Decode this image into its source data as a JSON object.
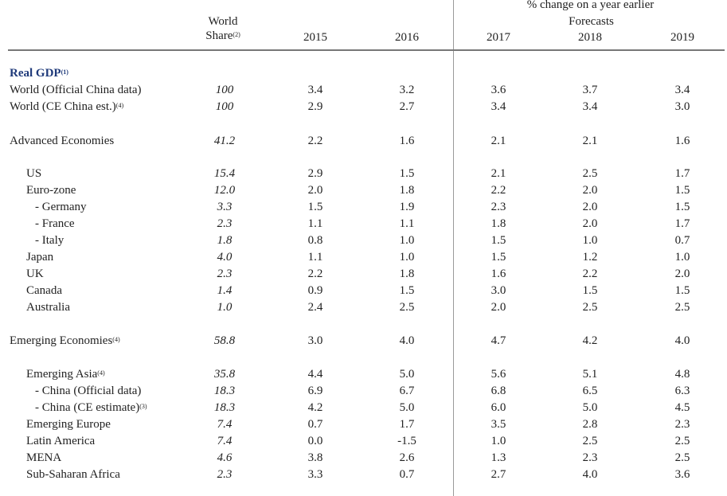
{
  "header": {
    "world_share_line1": "World",
    "world_share_line2": "Share",
    "world_share_note": "(2)",
    "pct_change": "% change on a year earlier",
    "forecasts": "Forecasts",
    "years": [
      "2015",
      "2016",
      "2017",
      "2018",
      "2019"
    ]
  },
  "section_title": "Real GDP",
  "section_note": "(1)",
  "rows": [
    {
      "label": "World (Official China data)",
      "note": "",
      "share": "100",
      "v": [
        "3.4",
        "3.2",
        "3.6",
        "3.7",
        "3.4"
      ],
      "indent": 0
    },
    {
      "label": "World (CE China est.)",
      "note": "(4)",
      "share": "100",
      "v": [
        "2.9",
        "2.7",
        "3.4",
        "3.4",
        "3.0"
      ],
      "indent": 0
    },
    {
      "label": "Advanced Economies",
      "note": "",
      "share": "41.2",
      "v": [
        "2.2",
        "1.6",
        "2.1",
        "2.1",
        "1.6"
      ],
      "indent": 0
    },
    {
      "label": "US",
      "note": "",
      "share": "15.4",
      "v": [
        "2.9",
        "1.5",
        "2.1",
        "2.5",
        "1.7"
      ],
      "indent": 1
    },
    {
      "label": "Euro-zone",
      "note": "",
      "share": "12.0",
      "v": [
        "2.0",
        "1.8",
        "2.2",
        "2.0",
        "1.5"
      ],
      "indent": 1
    },
    {
      "label": "- Germany",
      "note": "",
      "share": "3.3",
      "v": [
        "1.5",
        "1.9",
        "2.3",
        "2.0",
        "1.5"
      ],
      "indent": 2
    },
    {
      "label": "- France",
      "note": "",
      "share": "2.3",
      "v": [
        "1.1",
        "1.1",
        "1.8",
        "2.0",
        "1.7"
      ],
      "indent": 2
    },
    {
      "label": "- Italy",
      "note": "",
      "share": "1.8",
      "v": [
        "0.8",
        "1.0",
        "1.5",
        "1.0",
        "0.7"
      ],
      "indent": 2
    },
    {
      "label": "Japan",
      "note": "",
      "share": "4.0",
      "v": [
        "1.1",
        "1.0",
        "1.5",
        "1.2",
        "1.0"
      ],
      "indent": 1
    },
    {
      "label": "UK",
      "note": "",
      "share": "2.3",
      "v": [
        "2.2",
        "1.8",
        "1.6",
        "2.2",
        "2.0"
      ],
      "indent": 1
    },
    {
      "label": "Canada",
      "note": "",
      "share": "1.4",
      "v": [
        "0.9",
        "1.5",
        "3.0",
        "1.5",
        "1.5"
      ],
      "indent": 1
    },
    {
      "label": "Australia",
      "note": "",
      "share": "1.0",
      "v": [
        "2.4",
        "2.5",
        "2.0",
        "2.5",
        "2.5"
      ],
      "indent": 1
    },
    {
      "label": "Emerging Economies",
      "note": "(4)",
      "share": "58.8",
      "v": [
        "3.0",
        "4.0",
        "4.7",
        "4.2",
        "4.0"
      ],
      "indent": 0
    },
    {
      "label": "Emerging Asia",
      "note": "(4)",
      "share": "35.8",
      "v": [
        "4.4",
        "5.0",
        "5.6",
        "5.1",
        "4.8"
      ],
      "indent": 1
    },
    {
      "label": "- China (Official data)",
      "note": "",
      "share": "18.3",
      "v": [
        "6.9",
        "6.7",
        "6.8",
        "6.5",
        "6.3"
      ],
      "indent": 2
    },
    {
      "label": "- China (CE estimate)",
      "note": "(3)",
      "share": "18.3",
      "v": [
        "4.2",
        "5.0",
        "6.0",
        "5.0",
        "4.5"
      ],
      "indent": 2
    },
    {
      "label": "Emerging Europe",
      "note": "",
      "share": "7.4",
      "v": [
        "0.7",
        "1.7",
        "3.5",
        "2.8",
        "2.3"
      ],
      "indent": 1
    },
    {
      "label": "Latin America",
      "note": "",
      "share": "7.4",
      "v": [
        "0.0",
        "-1.5",
        "1.0",
        "2.5",
        "2.5"
      ],
      "indent": 1
    },
    {
      "label": "MENA",
      "note": "",
      "share": "4.6",
      "v": [
        "3.8",
        "2.6",
        "1.3",
        "2.3",
        "2.5"
      ],
      "indent": 1
    },
    {
      "label": "Sub-Saharan Africa",
      "note": "",
      "share": "2.3",
      "v": [
        "3.3",
        "0.7",
        "2.7",
        "4.0",
        "3.6"
      ],
      "indent": 1
    }
  ]
}
